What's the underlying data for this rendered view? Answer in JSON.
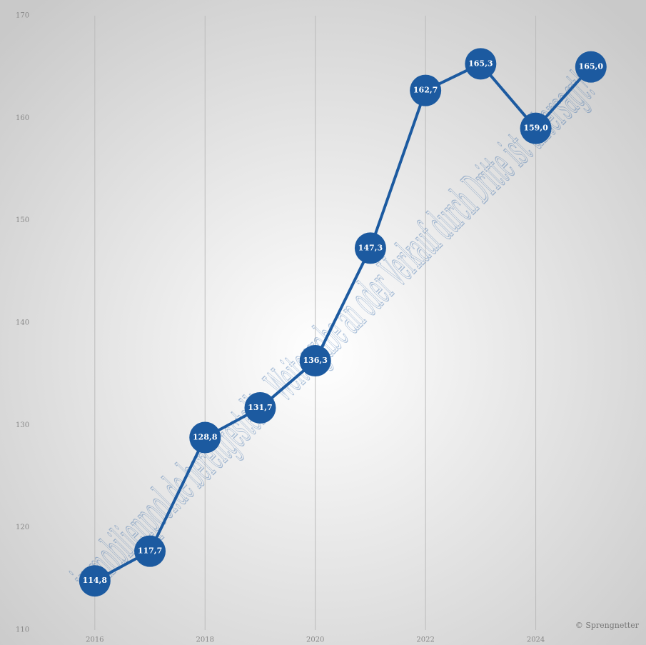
{
  "chart_data": {
    "type": "line",
    "x": [
      2016,
      2017,
      2018,
      2019,
      2020,
      2021,
      2022,
      2023,
      2024,
      2025
    ],
    "xlim": [
      2014.5,
      2026
    ],
    "xticks": [
      2016,
      2018,
      2020,
      2022,
      2024
    ],
    "series": [
      {
        "name": null,
        "color": "#1c5aa0",
        "values": [
          114.8,
          117.7,
          128.8,
          131.7,
          136.3,
          147.3,
          162.7,
          165.3,
          159.0,
          165.0
        ],
        "value_labels": [
          "114,8",
          "117,7",
          "128,8",
          "131,7",
          "136,3",
          "147,3",
          "162,7",
          "165,3",
          "159,0",
          "165,0"
        ]
      }
    ],
    "ylim": [
      110,
      170
    ],
    "yticks": [
      110,
      120,
      130,
      140,
      150,
      160,
      170
    ],
    "grid": true,
    "source": "© Sprengnetter",
    "watermark": "immobilienpool.de bereitgestellt - Weitergabe an oder Verkauf durch Dritte ist untersagt!"
  }
}
